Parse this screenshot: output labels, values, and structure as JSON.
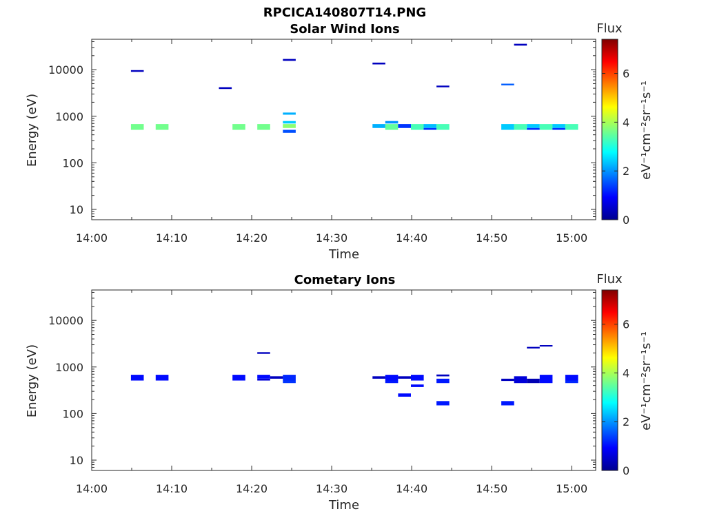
{
  "figure": {
    "title": "RPCICA140807T14.PNG"
  },
  "chart_data": [
    {
      "type": "heatmap",
      "title": "Solar Wind Ions",
      "xlabel": "Time",
      "ylabel": "Energy (eV)",
      "x_ticks": [
        "14:00",
        "14:10",
        "14:20",
        "14:30",
        "14:40",
        "14:50",
        "15:00"
      ],
      "xlim_minutes": [
        0,
        63
      ],
      "y_scale": "log",
      "ylim": [
        6,
        45000
      ],
      "y_ticks": [
        10,
        100,
        1000,
        10000
      ],
      "y_tick_labels": [
        "10",
        "100",
        "1000",
        "10000"
      ],
      "colorbar": {
        "title": "Flux",
        "label": "eV⁻¹cm⁻²sr⁻¹s⁻¹",
        "range": [
          0,
          7.4
        ],
        "ticks": [
          "0",
          "2",
          "4",
          "6"
        ]
      },
      "cells": [
        {
          "t": [
            4.9,
            6.5
          ],
          "e": [
            510,
            680
          ],
          "flux": 3.6
        },
        {
          "t": [
            8.0,
            9.6
          ],
          "e": [
            510,
            680
          ],
          "flux": 3.6
        },
        {
          "t": [
            17.6,
            19.2
          ],
          "e": [
            510,
            680
          ],
          "flux": 3.6
        },
        {
          "t": [
            20.7,
            22.3
          ],
          "e": [
            510,
            680
          ],
          "flux": 3.6
        },
        {
          "t": [
            23.9,
            25.5
          ],
          "e": [
            560,
            680
          ],
          "flux": 3.8
        },
        {
          "t": [
            23.9,
            25.5
          ],
          "e": [
            700,
            790
          ],
          "flux": 2.4
        },
        {
          "t": [
            23.9,
            25.5
          ],
          "e": [
            440,
            510
          ],
          "flux": 1.5
        },
        {
          "t": [
            23.9,
            25.5
          ],
          "e": [
            1080,
            1200
          ],
          "flux": 2.2
        },
        {
          "t": [
            23.9,
            25.5
          ],
          "e": [
            15500,
            17000
          ],
          "flux": 0.4
        },
        {
          "t": [
            4.9,
            6.5
          ],
          "e": [
            9000,
            9800
          ],
          "flux": 0.4
        },
        {
          "t": [
            15.9,
            17.5
          ],
          "e": [
            3850,
            4200
          ],
          "flux": 0.4
        },
        {
          "t": [
            35.1,
            36.7
          ],
          "e": [
            560,
            680
          ],
          "flux": 2.2
        },
        {
          "t": [
            35.1,
            36.7
          ],
          "e": [
            13000,
            14200
          ],
          "flux": 0.4
        },
        {
          "t": [
            36.7,
            38.3
          ],
          "e": [
            510,
            680
          ],
          "flux": 3.5
        },
        {
          "t": [
            36.7,
            38.3
          ],
          "e": [
            700,
            790
          ],
          "flux": 2.0
        },
        {
          "t": [
            38.3,
            39.9
          ],
          "e": [
            560,
            680
          ],
          "flux": 1.3
        },
        {
          "t": [
            39.9,
            41.5
          ],
          "e": [
            510,
            680
          ],
          "flux": 3.3
        },
        {
          "t": [
            41.5,
            43.1
          ],
          "e": [
            560,
            680
          ],
          "flux": 2.3
        },
        {
          "t": [
            41.5,
            43.1
          ],
          "e": [
            510,
            560
          ],
          "flux": 1.3
        },
        {
          "t": [
            43.1,
            44.7
          ],
          "e": [
            510,
            680
          ],
          "flux": 3.3
        },
        {
          "t": [
            43.1,
            44.7
          ],
          "e": [
            4200,
            4550
          ],
          "flux": 0.4
        },
        {
          "t": [
            51.2,
            52.8
          ],
          "e": [
            510,
            680
          ],
          "flux": 2.4
        },
        {
          "t": [
            51.2,
            52.8
          ],
          "e": [
            4600,
            5000
          ],
          "flux": 1.6
        },
        {
          "t": [
            52.8,
            54.4
          ],
          "e": [
            510,
            680
          ],
          "flux": 3.3
        },
        {
          "t": [
            52.8,
            54.4
          ],
          "e": [
            33000,
            36000
          ],
          "flux": 0.4
        },
        {
          "t": [
            54.4,
            56.0
          ],
          "e": [
            560,
            680
          ],
          "flux": 2.4
        },
        {
          "t": [
            54.4,
            56.0
          ],
          "e": [
            510,
            560
          ],
          "flux": 1.3
        },
        {
          "t": [
            56.0,
            57.6
          ],
          "e": [
            510,
            680
          ],
          "flux": 3.3
        },
        {
          "t": [
            57.6,
            59.2
          ],
          "e": [
            560,
            680
          ],
          "flux": 2.4
        },
        {
          "t": [
            57.6,
            59.2
          ],
          "e": [
            510,
            560
          ],
          "flux": 1.3
        },
        {
          "t": [
            59.2,
            60.8
          ],
          "e": [
            510,
            680
          ],
          "flux": 3.3
        }
      ]
    },
    {
      "type": "heatmap",
      "title": "Cometary Ions",
      "xlabel": "Time",
      "ylabel": "Energy (eV)",
      "x_ticks": [
        "14:00",
        "14:10",
        "14:20",
        "14:30",
        "14:40",
        "14:50",
        "15:00"
      ],
      "xlim_minutes": [
        0,
        63
      ],
      "y_scale": "log",
      "ylim": [
        6,
        45000
      ],
      "y_ticks": [
        10,
        100,
        1000,
        10000
      ],
      "y_tick_labels": [
        "10",
        "100",
        "1000",
        "10000"
      ],
      "colorbar": {
        "title": "Flux",
        "label": "eV⁻¹cm⁻²sr⁻¹s⁻¹",
        "range": [
          0,
          7.4
        ],
        "ticks": [
          "0",
          "2",
          "4",
          "6"
        ]
      },
      "cells": [
        {
          "t": [
            4.9,
            6.5
          ],
          "e": [
            510,
            680
          ],
          "flux": 1.0
        },
        {
          "t": [
            8.0,
            9.6
          ],
          "e": [
            510,
            680
          ],
          "flux": 1.0
        },
        {
          "t": [
            17.6,
            19.2
          ],
          "e": [
            510,
            680
          ],
          "flux": 1.0
        },
        {
          "t": [
            20.7,
            22.3
          ],
          "e": [
            560,
            680
          ],
          "flux": 1.0
        },
        {
          "t": [
            20.7,
            22.3
          ],
          "e": [
            510,
            560
          ],
          "flux": 0.6
        },
        {
          "t": [
            20.7,
            22.3
          ],
          "e": [
            1920,
            2080
          ],
          "flux": 0.4
        },
        {
          "t": [
            22.3,
            23.9
          ],
          "e": [
            560,
            630
          ],
          "flux": 0.4
        },
        {
          "t": [
            23.9,
            25.5
          ],
          "e": [
            510,
            680
          ],
          "flux": 1.2
        },
        {
          "t": [
            23.9,
            25.5
          ],
          "e": [
            450,
            510
          ],
          "flux": 1.3
        },
        {
          "t": [
            35.1,
            36.7
          ],
          "e": [
            560,
            630
          ],
          "flux": 0.4
        },
        {
          "t": [
            36.7,
            38.3
          ],
          "e": [
            510,
            680
          ],
          "flux": 1.0
        },
        {
          "t": [
            36.7,
            38.3
          ],
          "e": [
            450,
            510
          ],
          "flux": 1.1
        },
        {
          "t": [
            38.3,
            39.9
          ],
          "e": [
            560,
            630
          ],
          "flux": 0.4
        },
        {
          "t": [
            38.3,
            39.9
          ],
          "e": [
            230,
            270
          ],
          "flux": 1.0
        },
        {
          "t": [
            39.9,
            41.5
          ],
          "e": [
            510,
            680
          ],
          "flux": 1.0
        },
        {
          "t": [
            39.9,
            41.5
          ],
          "e": [
            370,
            420
          ],
          "flux": 1.0
        },
        {
          "t": [
            43.1,
            44.7
          ],
          "e": [
            450,
            560
          ],
          "flux": 1.1
        },
        {
          "t": [
            43.1,
            44.7
          ],
          "e": [
            630,
            690
          ],
          "flux": 0.4
        },
        {
          "t": [
            43.1,
            44.7
          ],
          "e": [
            150,
            185
          ],
          "flux": 1.1
        },
        {
          "t": [
            51.2,
            52.8
          ],
          "e": [
            500,
            560
          ],
          "flux": 0.4
        },
        {
          "t": [
            51.2,
            52.8
          ],
          "e": [
            150,
            185
          ],
          "flux": 1.1
        },
        {
          "t": [
            52.8,
            54.4
          ],
          "e": [
            450,
            630
          ],
          "flux": 0.6
        },
        {
          "t": [
            54.4,
            56.0
          ],
          "e": [
            450,
            560
          ],
          "flux": 0.3
        },
        {
          "t": [
            54.4,
            56.0
          ],
          "e": [
            2500,
            2700
          ],
          "flux": 0.4
        },
        {
          "t": [
            56.0,
            57.6
          ],
          "e": [
            450,
            680
          ],
          "flux": 1.0
        },
        {
          "t": [
            56.0,
            57.6
          ],
          "e": [
            2750,
            2950
          ],
          "flux": 0.4
        },
        {
          "t": [
            59.2,
            60.8
          ],
          "e": [
            510,
            680
          ],
          "flux": 1.0
        },
        {
          "t": [
            59.2,
            60.8
          ],
          "e": [
            450,
            510
          ],
          "flux": 1.2
        }
      ]
    }
  ]
}
